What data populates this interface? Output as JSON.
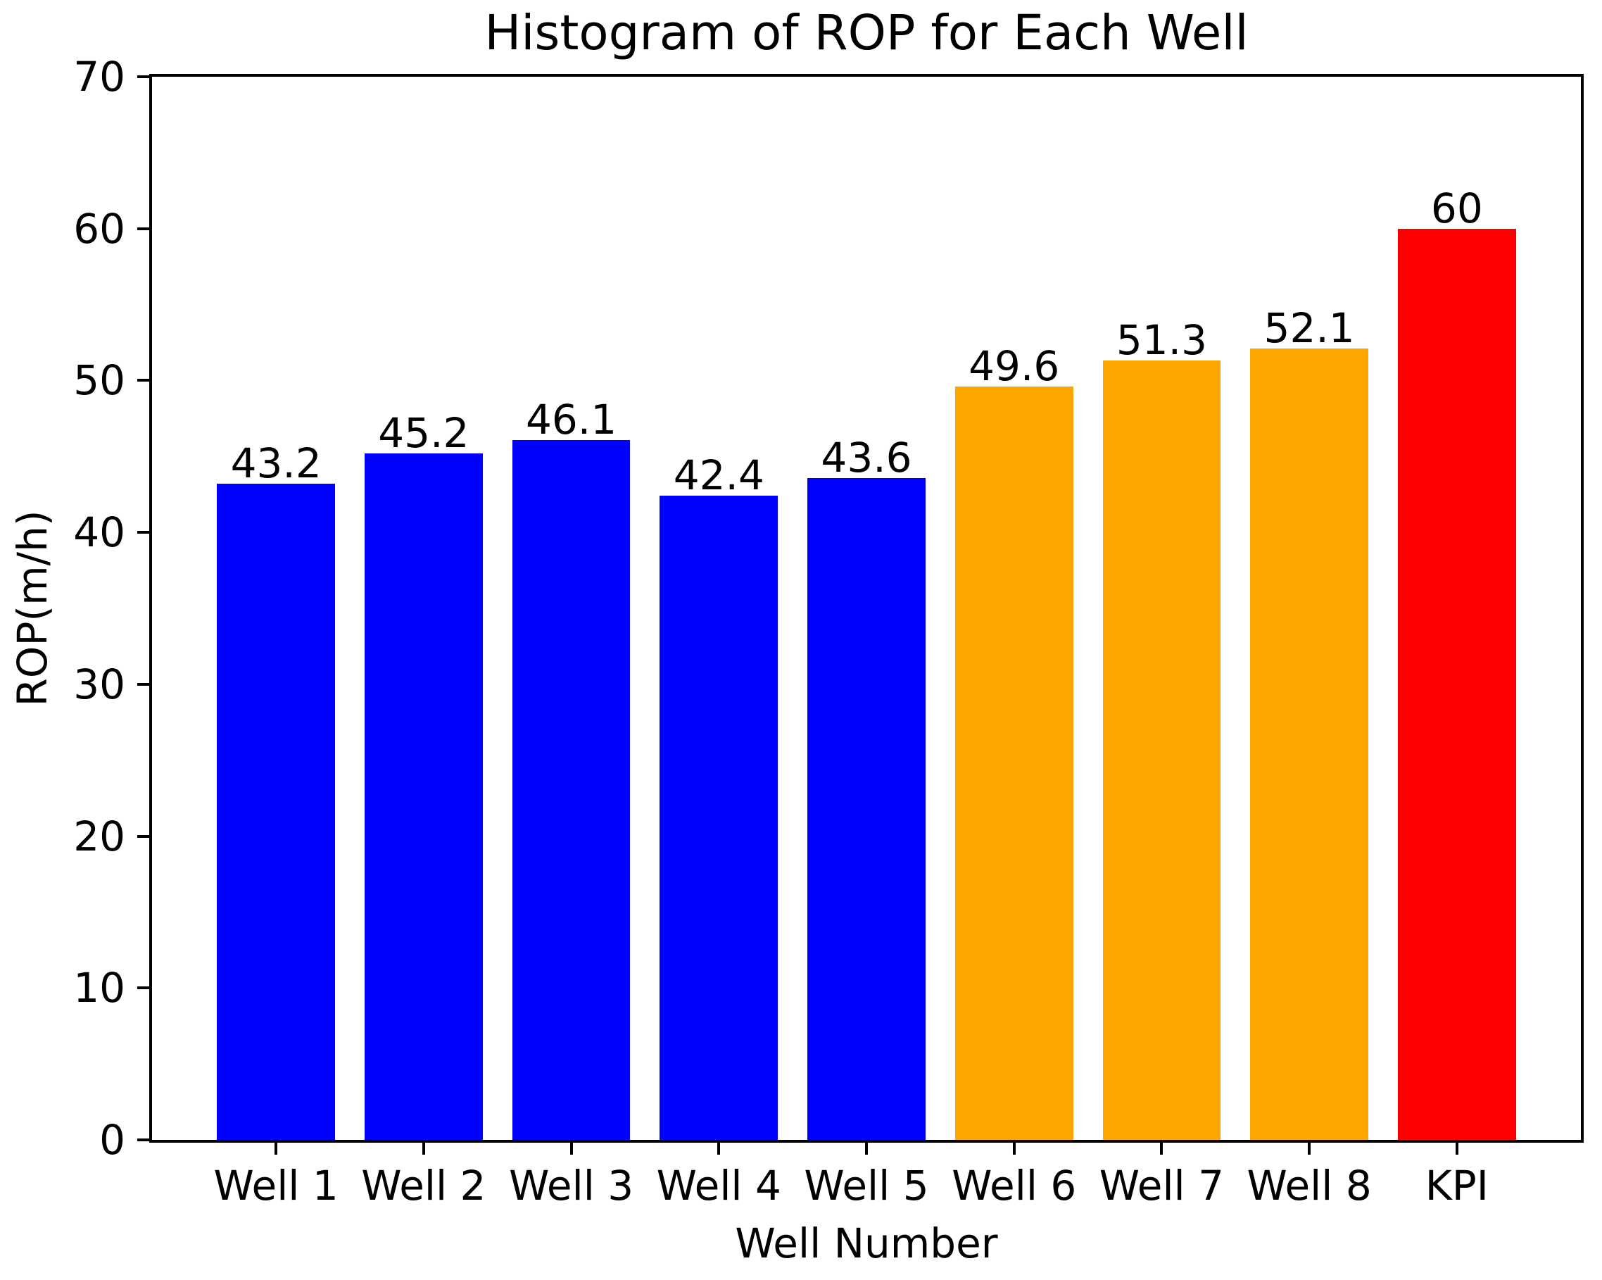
{
  "chart_data": {
    "type": "bar",
    "title": "Histogram of ROP for Each Well",
    "xlabel": "Well Number",
    "ylabel": "ROP(m/h)",
    "categories": [
      "Well 1",
      "Well 2",
      "Well 3",
      "Well 4",
      "Well 5",
      "Well 6",
      "Well 7",
      "Well 8",
      "KPI"
    ],
    "values": [
      43.2,
      45.2,
      46.1,
      42.4,
      43.6,
      49.6,
      51.3,
      52.1,
      60
    ],
    "bar_colors": [
      "#0000ff",
      "#0000ff",
      "#0000ff",
      "#0000ff",
      "#0000ff",
      "#ffa500",
      "#ffa500",
      "#ffa500",
      "#ff0000"
    ],
    "color_legend": {
      "blue": "#0000ff",
      "orange": "#ffa500",
      "red": "#ff0000"
    },
    "ylim": [
      0,
      70
    ],
    "yticks": [
      0,
      10,
      20,
      30,
      40,
      50,
      60,
      70
    ],
    "grid": false,
    "legend_position": "none",
    "value_labels_shown": true,
    "axis_color": "#000000",
    "background_color": "#ffffff"
  }
}
